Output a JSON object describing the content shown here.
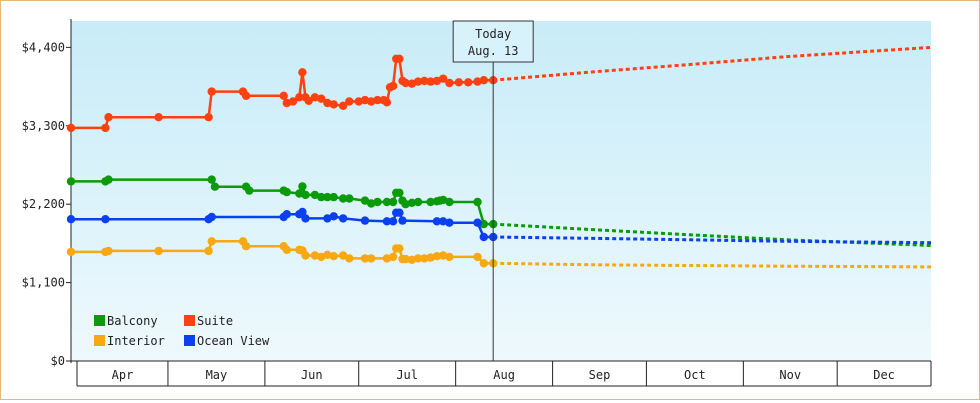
{
  "chart_data": {
    "type": "line",
    "title": "",
    "xlabel": "",
    "ylabel": "",
    "ylim": [
      0,
      4400
    ],
    "yticks": [
      {
        "value": 0,
        "label": "$0"
      },
      {
        "value": 1100,
        "label": "$1,100"
      },
      {
        "value": 2200,
        "label": "$2,200"
      },
      {
        "value": 3300,
        "label": "$3,300"
      },
      {
        "value": 4400,
        "label": "$4,400"
      }
    ],
    "xlim": [
      "2015-03-31",
      "2015-12-31"
    ],
    "months": [
      {
        "label": "Apr",
        "start": "2015-04-01",
        "end": "2015-05-01"
      },
      {
        "label": "May",
        "start": "2015-05-01",
        "end": "2015-06-01"
      },
      {
        "label": "Jun",
        "start": "2015-06-01",
        "end": "2015-07-01"
      },
      {
        "label": "Jul",
        "start": "2015-07-01",
        "end": "2015-08-01"
      },
      {
        "label": "Aug",
        "start": "2015-08-01",
        "end": "2015-09-01"
      },
      {
        "label": "Sep",
        "start": "2015-09-01",
        "end": "2015-10-01"
      },
      {
        "label": "Oct",
        "start": "2015-10-01",
        "end": "2015-11-01"
      },
      {
        "label": "Nov",
        "start": "2015-11-01",
        "end": "2015-12-01"
      },
      {
        "label": "Dec",
        "start": "2015-12-01",
        "end": "2015-12-31"
      }
    ],
    "today": {
      "date": "2015-08-13",
      "label_line1": "Today",
      "label_line2": "Aug. 13"
    },
    "grid": false,
    "legend_position": "bottom-left",
    "series": [
      {
        "name": "Balcony",
        "color": "#0a9a0a",
        "points": [
          {
            "x": "2015-03-31",
            "y": 2520
          },
          {
            "x": "2015-04-11",
            "y": 2520
          },
          {
            "x": "2015-04-12",
            "y": 2545
          },
          {
            "x": "2015-05-15",
            "y": 2545
          },
          {
            "x": "2015-05-16",
            "y": 2445
          },
          {
            "x": "2015-05-26",
            "y": 2445
          },
          {
            "x": "2015-05-27",
            "y": 2390
          },
          {
            "x": "2015-06-07",
            "y": 2390
          },
          {
            "x": "2015-06-08",
            "y": 2370
          },
          {
            "x": "2015-06-12",
            "y": 2350
          },
          {
            "x": "2015-06-13",
            "y": 2450
          },
          {
            "x": "2015-06-14",
            "y": 2330
          },
          {
            "x": "2015-06-17",
            "y": 2330
          },
          {
            "x": "2015-06-19",
            "y": 2300
          },
          {
            "x": "2015-06-21",
            "y": 2300
          },
          {
            "x": "2015-06-23",
            "y": 2300
          },
          {
            "x": "2015-06-26",
            "y": 2280
          },
          {
            "x": "2015-06-28",
            "y": 2280
          },
          {
            "x": "2015-07-03",
            "y": 2250
          },
          {
            "x": "2015-07-05",
            "y": 2210
          },
          {
            "x": "2015-07-07",
            "y": 2230
          },
          {
            "x": "2015-07-10",
            "y": 2230
          },
          {
            "x": "2015-07-12",
            "y": 2230
          },
          {
            "x": "2015-07-13",
            "y": 2360
          },
          {
            "x": "2015-07-14",
            "y": 2360
          },
          {
            "x": "2015-07-15",
            "y": 2250
          },
          {
            "x": "2015-07-16",
            "y": 2200
          },
          {
            "x": "2015-07-18",
            "y": 2220
          },
          {
            "x": "2015-07-20",
            "y": 2230
          },
          {
            "x": "2015-07-24",
            "y": 2230
          },
          {
            "x": "2015-07-26",
            "y": 2240
          },
          {
            "x": "2015-07-27",
            "y": 2250
          },
          {
            "x": "2015-07-28",
            "y": 2260
          },
          {
            "x": "2015-07-30",
            "y": 2230
          },
          {
            "x": "2015-08-08",
            "y": 2230
          },
          {
            "x": "2015-08-10",
            "y": 1920
          },
          {
            "x": "2015-08-13",
            "y": 1920
          }
        ],
        "forecast": [
          {
            "x": "2015-08-13",
            "y": 1920
          },
          {
            "x": "2015-09-15",
            "y": 1840
          },
          {
            "x": "2015-10-15",
            "y": 1770
          },
          {
            "x": "2015-11-15",
            "y": 1700
          },
          {
            "x": "2015-12-31",
            "y": 1620
          }
        ]
      },
      {
        "name": "Suite",
        "color": "#ff4010",
        "points": [
          {
            "x": "2015-03-31",
            "y": 3270
          },
          {
            "x": "2015-04-11",
            "y": 3270
          },
          {
            "x": "2015-04-12",
            "y": 3420
          },
          {
            "x": "2015-04-28",
            "y": 3420
          },
          {
            "x": "2015-05-14",
            "y": 3420
          },
          {
            "x": "2015-05-15",
            "y": 3780
          },
          {
            "x": "2015-05-25",
            "y": 3780
          },
          {
            "x": "2015-05-26",
            "y": 3720
          },
          {
            "x": "2015-06-07",
            "y": 3720
          },
          {
            "x": "2015-06-08",
            "y": 3620
          },
          {
            "x": "2015-06-10",
            "y": 3640
          },
          {
            "x": "2015-06-12",
            "y": 3700
          },
          {
            "x": "2015-06-13",
            "y": 4050
          },
          {
            "x": "2015-06-14",
            "y": 3700
          },
          {
            "x": "2015-06-15",
            "y": 3650
          },
          {
            "x": "2015-06-17",
            "y": 3700
          },
          {
            "x": "2015-06-19",
            "y": 3680
          },
          {
            "x": "2015-06-21",
            "y": 3620
          },
          {
            "x": "2015-06-23",
            "y": 3600
          },
          {
            "x": "2015-06-26",
            "y": 3580
          },
          {
            "x": "2015-06-28",
            "y": 3640
          },
          {
            "x": "2015-07-01",
            "y": 3640
          },
          {
            "x": "2015-07-03",
            "y": 3660
          },
          {
            "x": "2015-07-05",
            "y": 3640
          },
          {
            "x": "2015-07-07",
            "y": 3660
          },
          {
            "x": "2015-07-09",
            "y": 3660
          },
          {
            "x": "2015-07-10",
            "y": 3630
          },
          {
            "x": "2015-07-11",
            "y": 3840
          },
          {
            "x": "2015-07-12",
            "y": 3860
          },
          {
            "x": "2015-07-13",
            "y": 4240
          },
          {
            "x": "2015-07-14",
            "y": 4240
          },
          {
            "x": "2015-07-15",
            "y": 3930
          },
          {
            "x": "2015-07-16",
            "y": 3900
          },
          {
            "x": "2015-07-18",
            "y": 3890
          },
          {
            "x": "2015-07-20",
            "y": 3920
          },
          {
            "x": "2015-07-22",
            "y": 3930
          },
          {
            "x": "2015-07-24",
            "y": 3920
          },
          {
            "x": "2015-07-26",
            "y": 3930
          },
          {
            "x": "2015-07-28",
            "y": 3960
          },
          {
            "x": "2015-07-30",
            "y": 3900
          },
          {
            "x": "2015-08-02",
            "y": 3910
          },
          {
            "x": "2015-08-05",
            "y": 3910
          },
          {
            "x": "2015-08-08",
            "y": 3920
          },
          {
            "x": "2015-08-10",
            "y": 3940
          },
          {
            "x": "2015-08-13",
            "y": 3940
          }
        ],
        "forecast": [
          {
            "x": "2015-08-13",
            "y": 3940
          },
          {
            "x": "2015-09-15",
            "y": 4060
          },
          {
            "x": "2015-10-15",
            "y": 4160
          },
          {
            "x": "2015-11-15",
            "y": 4270
          },
          {
            "x": "2015-12-31",
            "y": 4400
          }
        ]
      },
      {
        "name": "Interior",
        "color": "#f8a810",
        "points": [
          {
            "x": "2015-03-31",
            "y": 1530
          },
          {
            "x": "2015-04-11",
            "y": 1530
          },
          {
            "x": "2015-04-12",
            "y": 1545
          },
          {
            "x": "2015-04-28",
            "y": 1545
          },
          {
            "x": "2015-05-14",
            "y": 1545
          },
          {
            "x": "2015-05-15",
            "y": 1680
          },
          {
            "x": "2015-05-25",
            "y": 1680
          },
          {
            "x": "2015-05-26",
            "y": 1610
          },
          {
            "x": "2015-06-07",
            "y": 1610
          },
          {
            "x": "2015-06-08",
            "y": 1560
          },
          {
            "x": "2015-06-12",
            "y": 1560
          },
          {
            "x": "2015-06-13",
            "y": 1550
          },
          {
            "x": "2015-06-14",
            "y": 1480
          },
          {
            "x": "2015-06-17",
            "y": 1480
          },
          {
            "x": "2015-06-19",
            "y": 1460
          },
          {
            "x": "2015-06-21",
            "y": 1490
          },
          {
            "x": "2015-06-23",
            "y": 1470
          },
          {
            "x": "2015-06-26",
            "y": 1480
          },
          {
            "x": "2015-06-28",
            "y": 1440
          },
          {
            "x": "2015-07-03",
            "y": 1440
          },
          {
            "x": "2015-07-05",
            "y": 1440
          },
          {
            "x": "2015-07-10",
            "y": 1440
          },
          {
            "x": "2015-07-12",
            "y": 1460
          },
          {
            "x": "2015-07-13",
            "y": 1580
          },
          {
            "x": "2015-07-14",
            "y": 1580
          },
          {
            "x": "2015-07-15",
            "y": 1430
          },
          {
            "x": "2015-07-16",
            "y": 1430
          },
          {
            "x": "2015-07-18",
            "y": 1420
          },
          {
            "x": "2015-07-20",
            "y": 1440
          },
          {
            "x": "2015-07-22",
            "y": 1440
          },
          {
            "x": "2015-07-24",
            "y": 1450
          },
          {
            "x": "2015-07-26",
            "y": 1470
          },
          {
            "x": "2015-07-28",
            "y": 1480
          },
          {
            "x": "2015-07-30",
            "y": 1460
          },
          {
            "x": "2015-08-08",
            "y": 1460
          },
          {
            "x": "2015-08-10",
            "y": 1370
          },
          {
            "x": "2015-08-13",
            "y": 1370
          }
        ],
        "forecast": [
          {
            "x": "2015-08-13",
            "y": 1370
          },
          {
            "x": "2015-09-15",
            "y": 1350
          },
          {
            "x": "2015-10-15",
            "y": 1340
          },
          {
            "x": "2015-11-15",
            "y": 1330
          },
          {
            "x": "2015-12-31",
            "y": 1320
          }
        ]
      },
      {
        "name": "Ocean View",
        "color": "#0a40f0",
        "points": [
          {
            "x": "2015-03-31",
            "y": 1990
          },
          {
            "x": "2015-04-11",
            "y": 1990
          },
          {
            "x": "2015-05-14",
            "y": 1990
          },
          {
            "x": "2015-05-15",
            "y": 2020
          },
          {
            "x": "2015-06-07",
            "y": 2020
          },
          {
            "x": "2015-06-08",
            "y": 2060
          },
          {
            "x": "2015-06-12",
            "y": 2060
          },
          {
            "x": "2015-06-13",
            "y": 2090
          },
          {
            "x": "2015-06-14",
            "y": 2000
          },
          {
            "x": "2015-06-21",
            "y": 2000
          },
          {
            "x": "2015-06-23",
            "y": 2030
          },
          {
            "x": "2015-06-26",
            "y": 2000
          },
          {
            "x": "2015-07-03",
            "y": 1970
          },
          {
            "x": "2015-07-10",
            "y": 1960
          },
          {
            "x": "2015-07-12",
            "y": 1960
          },
          {
            "x": "2015-07-13",
            "y": 2080
          },
          {
            "x": "2015-07-14",
            "y": 2080
          },
          {
            "x": "2015-07-15",
            "y": 1970
          },
          {
            "x": "2015-07-26",
            "y": 1960
          },
          {
            "x": "2015-07-28",
            "y": 1960
          },
          {
            "x": "2015-07-30",
            "y": 1940
          },
          {
            "x": "2015-08-08",
            "y": 1940
          },
          {
            "x": "2015-08-10",
            "y": 1740
          },
          {
            "x": "2015-08-13",
            "y": 1740
          }
        ],
        "forecast": [
          {
            "x": "2015-08-13",
            "y": 1740
          },
          {
            "x": "2015-09-15",
            "y": 1720
          },
          {
            "x": "2015-10-15",
            "y": 1700
          },
          {
            "x": "2015-11-15",
            "y": 1680
          },
          {
            "x": "2015-12-31",
            "y": 1660
          }
        ]
      }
    ]
  },
  "legend": [
    {
      "name": "Balcony",
      "color": "#0a9a0a"
    },
    {
      "name": "Suite",
      "color": "#ff4010"
    },
    {
      "name": "Interior",
      "color": "#f8a810"
    },
    {
      "name": "Ocean View",
      "color": "#0a40f0"
    }
  ],
  "colors": {
    "plot_top": "#c8ecf8",
    "plot_bottom": "#eef9fd",
    "frame_border": "#e8b878",
    "axis": "#222222"
  }
}
